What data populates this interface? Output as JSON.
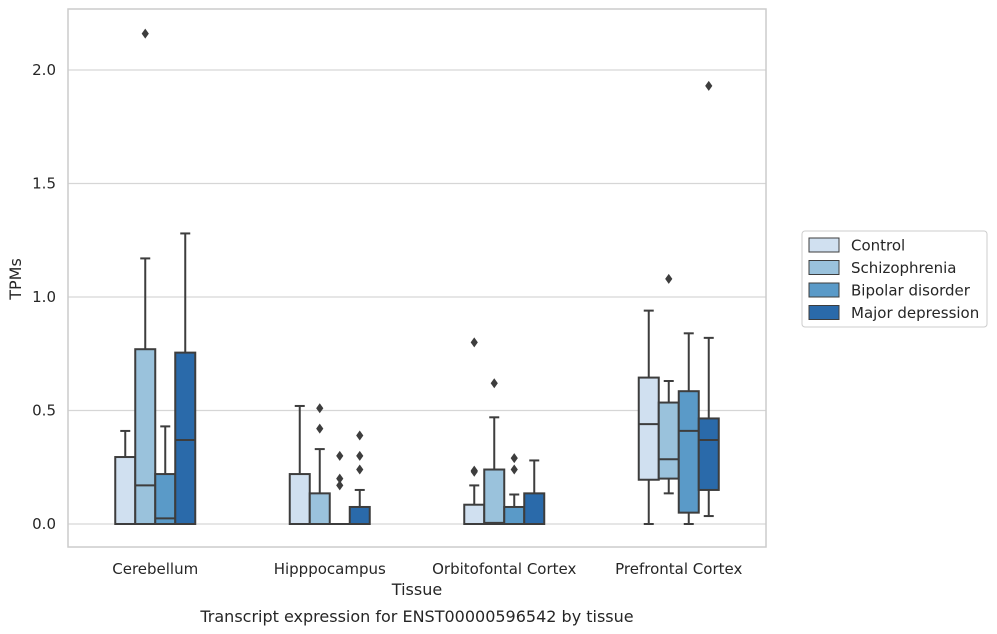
{
  "chart_data": {
    "type": "boxplot",
    "title": "",
    "caption": "Transcript expression for ENST00000596542 by tissue",
    "xlabel": "Tissue",
    "ylabel": "TPMs",
    "ylim": [
      -0.105,
      2.27
    ],
    "yticks": [
      0.0,
      0.5,
      1.0,
      1.5,
      2.0
    ],
    "ytick_labels": [
      "0.0",
      "0.5",
      "1.0",
      "1.5",
      "2.0"
    ],
    "grid": "horizontal",
    "legend_position": "right",
    "categories": [
      "Cerebellum",
      "Hipppocampus",
      "Orbitofontal Cortex",
      "Prefrontal Cortex"
    ],
    "series": [
      {
        "name": "Control",
        "color": "#d0e0f0",
        "boxes": [
          {
            "q1": 0.0,
            "median": 0.0,
            "q3": 0.295,
            "whislo": 0.0,
            "whishi": 0.41,
            "fliers": []
          },
          {
            "q1": 0.0,
            "median": 0.0,
            "q3": 0.22,
            "whislo": 0.0,
            "whishi": 0.52,
            "fliers": []
          },
          {
            "q1": 0.0,
            "median": 0.0,
            "q3": 0.085,
            "whislo": 0.0,
            "whishi": 0.17,
            "fliers": [
              0.235,
              0.23,
              0.8
            ]
          },
          {
            "q1": 0.195,
            "median": 0.44,
            "q3": 0.645,
            "whislo": 0.0,
            "whishi": 0.94,
            "fliers": []
          }
        ]
      },
      {
        "name": "Schizophrenia",
        "color": "#9ac2dc",
        "boxes": [
          {
            "q1": 0.0,
            "median": 0.17,
            "q3": 0.77,
            "whislo": 0.0,
            "whishi": 1.17,
            "fliers": [
              2.16
            ]
          },
          {
            "q1": 0.0,
            "median": 0.0,
            "q3": 0.135,
            "whislo": 0.0,
            "whishi": 0.33,
            "fliers": [
              0.42,
              0.51
            ]
          },
          {
            "q1": 0.0,
            "median": 0.005,
            "q3": 0.24,
            "whislo": 0.0,
            "whishi": 0.47,
            "fliers": [
              0.62
            ]
          },
          {
            "q1": 0.2,
            "median": 0.285,
            "q3": 0.535,
            "whislo": 0.135,
            "whishi": 0.63,
            "fliers": [
              1.08
            ]
          }
        ]
      },
      {
        "name": "Bipolar disorder",
        "color": "#5a9ac8",
        "boxes": [
          {
            "q1": 0.0,
            "median": 0.025,
            "q3": 0.22,
            "whislo": 0.0,
            "whishi": 0.43,
            "fliers": []
          },
          {
            "q1": 0.0,
            "median": 0.0,
            "q3": 0.0,
            "whislo": 0.0,
            "whishi": 0.0,
            "fliers": [
              0.17,
              0.2,
              0.3
            ]
          },
          {
            "q1": 0.0,
            "median": 0.0,
            "q3": 0.075,
            "whislo": 0.0,
            "whishi": 0.13,
            "fliers": [
              0.24,
              0.29
            ]
          },
          {
            "q1": 0.05,
            "median": 0.41,
            "q3": 0.585,
            "whislo": 0.0,
            "whishi": 0.84,
            "fliers": []
          }
        ]
      },
      {
        "name": "Major depression",
        "color": "#2a6aaa",
        "boxes": [
          {
            "q1": 0.0,
            "median": 0.37,
            "q3": 0.755,
            "whislo": 0.0,
            "whishi": 1.28,
            "fliers": []
          },
          {
            "q1": 0.0,
            "median": 0.0,
            "q3": 0.075,
            "whislo": 0.0,
            "whishi": 0.15,
            "fliers": [
              0.24,
              0.3,
              0.39
            ]
          },
          {
            "q1": 0.0,
            "median": 0.0,
            "q3": 0.135,
            "whislo": 0.0,
            "whishi": 0.28,
            "fliers": []
          },
          {
            "q1": 0.15,
            "median": 0.37,
            "q3": 0.465,
            "whislo": 0.035,
            "whishi": 0.82,
            "fliers": [
              1.93
            ]
          }
        ]
      }
    ]
  }
}
